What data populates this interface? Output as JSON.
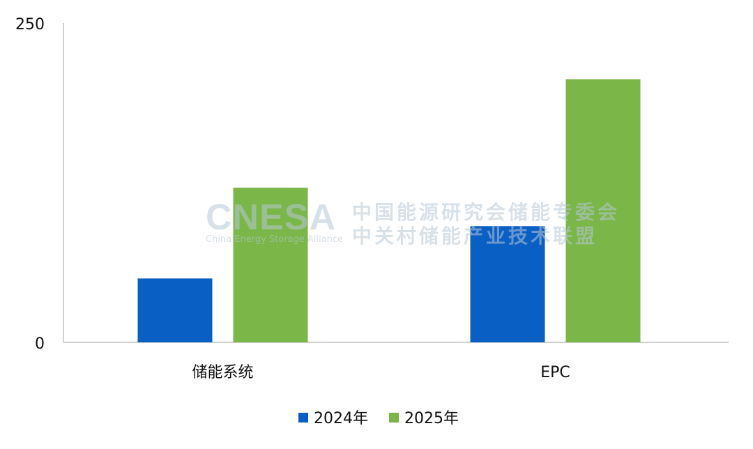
{
  "chart_data": {
    "type": "bar",
    "categories": [
      "储能系统",
      "EPC"
    ],
    "series": [
      {
        "name": "2024年",
        "values": [
          50,
          91
        ],
        "color": "#0a5fc4"
      },
      {
        "name": "2025年",
        "values": [
          121,
          206
        ],
        "color": "#7ab648"
      }
    ],
    "ylim": [
      0,
      250
    ],
    "yticks": [
      "0",
      "250"
    ],
    "grid": false,
    "legend_placement": "bottom"
  },
  "watermark": {
    "logo": "CNESA",
    "subtitle": "China Energy Storage Alliance",
    "line1": "中国能源研究会储能专委会",
    "line2": "中关村储能产业技术联盟"
  }
}
